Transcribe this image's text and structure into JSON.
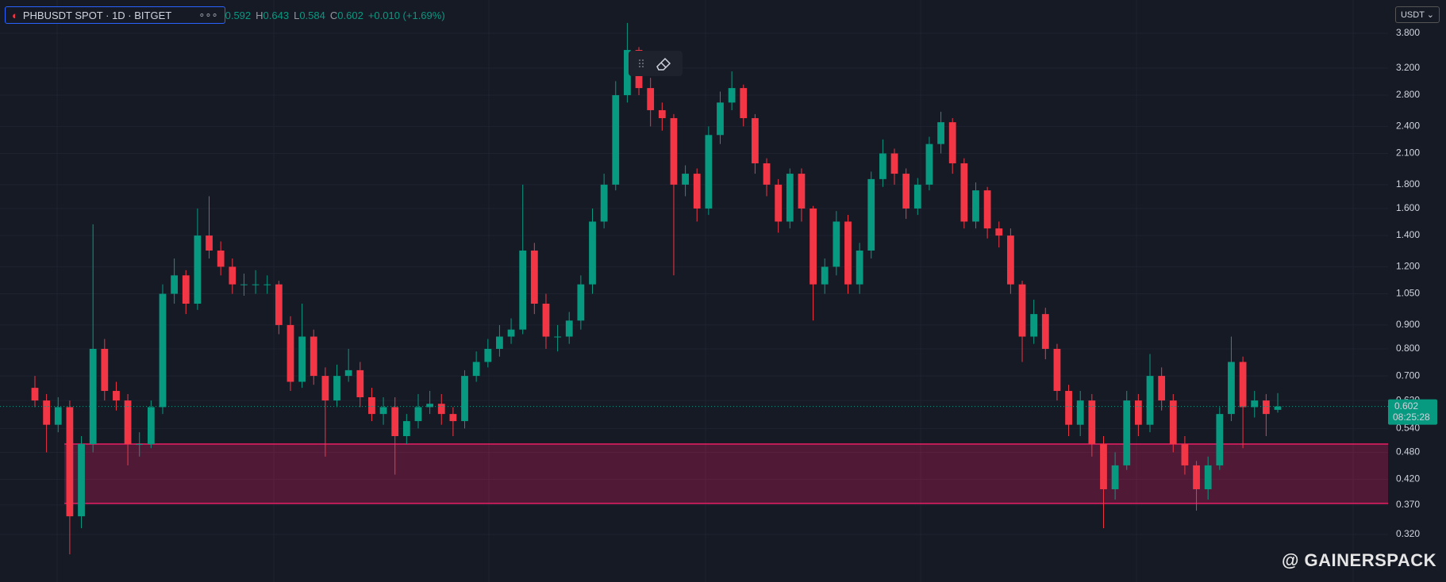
{
  "chart_data": {
    "type": "candlestick",
    "symbol": "PHBUSDT SPOT · 1D · BITGET",
    "open_value": 0.592,
    "ohlc_labels": [
      "H",
      "L",
      "C"
    ],
    "ohlc_values": [
      0.643,
      0.584,
      0.602
    ],
    "change_label": "+0.010 (+1.69%)",
    "currency": "USDT",
    "last_price": 0.602,
    "countdown": "08:25:28",
    "watermark": "@ GAINERSPACK",
    "log_scale": true,
    "grid": true,
    "up_color": "#089981",
    "down_color": "#f23645",
    "zone_color": "#e91e63",
    "zone": {
      "top": 0.5,
      "bottom": 0.373
    },
    "ylim": [
      0.253,
      4.48
    ],
    "yticks": [
      {
        "value": 3.8,
        "label": "3.800"
      },
      {
        "value": 3.2,
        "label": "3.200"
      },
      {
        "value": 2.8,
        "label": "2.800"
      },
      {
        "value": 2.4,
        "label": "2.400"
      },
      {
        "value": 2.1,
        "label": "2.100"
      },
      {
        "value": 1.8,
        "label": "1.800"
      },
      {
        "value": 1.6,
        "label": "1.600"
      },
      {
        "value": 1.4,
        "label": "1.400"
      },
      {
        "value": 1.2,
        "label": "1.200"
      },
      {
        "value": 1.05,
        "label": "1.050"
      },
      {
        "value": 0.9,
        "label": "0.900"
      },
      {
        "value": 0.8,
        "label": "0.800"
      },
      {
        "value": 0.7,
        "label": "0.700"
      },
      {
        "value": 0.62,
        "label": "0.620"
      },
      {
        "value": 0.54,
        "label": "0.540"
      },
      {
        "value": 0.48,
        "label": "0.480"
      },
      {
        "value": 0.42,
        "label": "0.420"
      },
      {
        "value": 0.37,
        "label": "0.370"
      },
      {
        "value": 0.32,
        "label": "0.320"
      }
    ],
    "open": [
      0.66,
      0.62,
      0.55,
      0.6,
      0.35,
      0.5,
      0.8,
      0.65,
      0.62,
      0.5,
      0.5,
      0.6,
      1.05,
      1.15,
      1.0,
      1.4,
      1.3,
      1.2,
      1.1,
      1.1,
      1.1,
      1.1,
      0.9,
      0.68,
      0.85,
      0.7,
      0.62,
      0.7,
      0.72,
      0.63,
      0.58,
      0.6,
      0.52,
      0.56,
      0.6,
      0.61,
      0.58,
      0.56,
      0.7,
      0.75,
      0.8,
      0.85,
      0.88,
      1.3,
      1.0,
      0.85,
      0.85,
      0.92,
      1.1,
      1.5,
      1.8,
      2.8,
      3.5,
      2.9,
      2.6,
      2.5,
      1.8,
      1.9,
      1.6,
      2.3,
      2.7,
      2.9,
      2.5,
      2.0,
      1.8,
      1.5,
      1.9,
      1.6,
      1.1,
      1.2,
      1.5,
      1.1,
      1.3,
      1.85,
      2.1,
      1.9,
      1.6,
      1.8,
      2.2,
      2.45,
      2.0,
      1.5,
      1.75,
      1.45,
      1.4,
      1.1,
      0.85,
      0.95,
      0.8,
      0.65,
      0.55,
      0.62,
      0.5,
      0.4,
      0.45,
      0.62,
      0.55,
      0.7,
      0.62,
      0.5,
      0.45,
      0.4,
      0.45,
      0.58,
      0.75,
      0.6,
      0.62,
      0.592
    ],
    "high": [
      0.7,
      0.64,
      0.63,
      0.62,
      0.52,
      1.48,
      0.84,
      0.68,
      0.64,
      0.53,
      0.62,
      1.1,
      1.25,
      1.18,
      1.6,
      1.7,
      1.36,
      1.25,
      1.16,
      1.18,
      1.15,
      1.12,
      0.94,
      1.0,
      0.88,
      0.73,
      0.74,
      0.8,
      0.75,
      0.66,
      0.63,
      0.63,
      0.58,
      0.64,
      0.65,
      0.64,
      0.6,
      0.72,
      0.79,
      0.84,
      0.9,
      0.93,
      1.8,
      1.35,
      1.05,
      0.9,
      0.96,
      1.15,
      1.6,
      1.9,
      3.0,
      4.0,
      3.55,
      3.05,
      2.7,
      2.55,
      1.98,
      1.95,
      2.4,
      2.85,
      3.15,
      2.95,
      2.55,
      2.05,
      1.85,
      1.95,
      1.95,
      1.62,
      1.25,
      1.58,
      1.55,
      1.35,
      1.92,
      2.25,
      2.15,
      1.95,
      1.86,
      2.28,
      2.58,
      2.5,
      2.05,
      1.82,
      1.78,
      1.5,
      1.45,
      1.12,
      1.02,
      0.98,
      0.82,
      0.67,
      0.65,
      0.64,
      0.52,
      0.48,
      0.65,
      0.64,
      0.78,
      0.73,
      0.64,
      0.52,
      0.46,
      0.47,
      0.6,
      0.85,
      0.77,
      0.65,
      0.64,
      0.643
    ],
    "low": [
      0.6,
      0.48,
      0.53,
      0.29,
      0.33,
      0.48,
      0.62,
      0.59,
      0.45,
      0.47,
      0.49,
      0.58,
      1.0,
      0.95,
      0.97,
      1.25,
      1.15,
      1.05,
      1.04,
      1.05,
      1.05,
      0.86,
      0.65,
      0.66,
      0.67,
      0.47,
      0.6,
      0.68,
      0.6,
      0.56,
      0.55,
      0.43,
      0.5,
      0.54,
      0.58,
      0.55,
      0.52,
      0.54,
      0.68,
      0.73,
      0.77,
      0.82,
      0.86,
      0.95,
      0.8,
      0.79,
      0.82,
      0.88,
      1.05,
      1.45,
      1.75,
      2.7,
      2.8,
      2.4,
      2.35,
      1.15,
      1.7,
      1.5,
      1.55,
      2.2,
      2.6,
      2.4,
      1.9,
      1.7,
      1.42,
      1.45,
      1.5,
      0.92,
      1.05,
      1.15,
      1.05,
      1.05,
      1.25,
      1.78,
      1.8,
      1.52,
      1.55,
      1.75,
      2.1,
      1.9,
      1.45,
      1.45,
      1.38,
      1.32,
      1.05,
      0.75,
      0.82,
      0.76,
      0.62,
      0.52,
      0.52,
      0.47,
      0.33,
      0.38,
      0.44,
      0.52,
      0.53,
      0.59,
      0.48,
      0.43,
      0.36,
      0.38,
      0.44,
      0.56,
      0.49,
      0.57,
      0.52,
      0.584
    ],
    "close": [
      0.62,
      0.55,
      0.6,
      0.35,
      0.5,
      0.8,
      0.65,
      0.62,
      0.5,
      0.5,
      0.6,
      1.05,
      1.15,
      1.0,
      1.4,
      1.3,
      1.2,
      1.1,
      1.1,
      1.1,
      1.1,
      0.9,
      0.68,
      0.85,
      0.7,
      0.62,
      0.7,
      0.72,
      0.63,
      0.58,
      0.6,
      0.52,
      0.56,
      0.6,
      0.61,
      0.58,
      0.56,
      0.7,
      0.75,
      0.8,
      0.85,
      0.88,
      1.3,
      1.0,
      0.85,
      0.85,
      0.92,
      1.1,
      1.5,
      1.8,
      2.8,
      3.5,
      2.9,
      2.6,
      2.5,
      1.8,
      1.9,
      1.6,
      2.3,
      2.7,
      2.9,
      2.5,
      2.0,
      1.8,
      1.5,
      1.9,
      1.6,
      1.1,
      1.2,
      1.5,
      1.1,
      1.3,
      1.85,
      2.1,
      1.9,
      1.6,
      1.8,
      2.2,
      2.45,
      2.0,
      1.5,
      1.75,
      1.45,
      1.4,
      1.1,
      0.85,
      0.95,
      0.8,
      0.65,
      0.55,
      0.62,
      0.5,
      0.4,
      0.45,
      0.62,
      0.55,
      0.7,
      0.62,
      0.5,
      0.45,
      0.4,
      0.45,
      0.58,
      0.75,
      0.6,
      0.62,
      0.58,
      0.602
    ]
  }
}
